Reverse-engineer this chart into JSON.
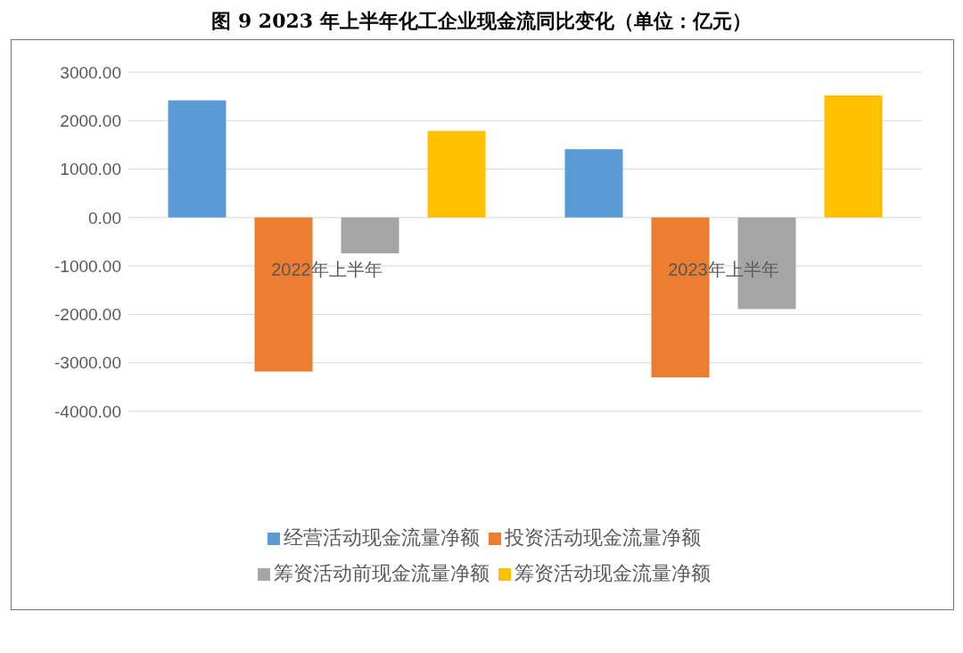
{
  "chart_data": {
    "type": "bar",
    "title": "图 9 2023 年上半年化工企业现金流同比变化（单位：亿元）",
    "categories": [
      "2022年上半年",
      "2023年上半年"
    ],
    "series": [
      {
        "name": "经营活动现金流量净额",
        "color": "#5b9bd5",
        "values": [
          2420,
          1410
        ]
      },
      {
        "name": "投资活动现金流量净额",
        "color": "#ed7d31",
        "values": [
          -3180,
          -3300
        ]
      },
      {
        "name": "筹资活动前现金流量净额",
        "color": "#a5a5a5",
        "values": [
          -740,
          -1890
        ]
      },
      {
        "name": "筹资活动现金流量净额",
        "color": "#ffc000",
        "values": [
          1790,
          2520
        ]
      }
    ],
    "ylim": [
      -4000,
      3000
    ],
    "yticks": [
      {
        "value": -4000,
        "label": "-4000.00"
      },
      {
        "value": -3000,
        "label": "-3000.00"
      },
      {
        "value": -2000,
        "label": "-2000.00"
      },
      {
        "value": -1000,
        "label": "-1000.00"
      },
      {
        "value": 0,
        "label": "0.00"
      },
      {
        "value": 1000,
        "label": "1000.00"
      },
      {
        "value": 2000,
        "label": "2000.00"
      },
      {
        "value": 3000,
        "label": "3000.00"
      }
    ],
    "grid": "y",
    "legend": "bottom"
  }
}
